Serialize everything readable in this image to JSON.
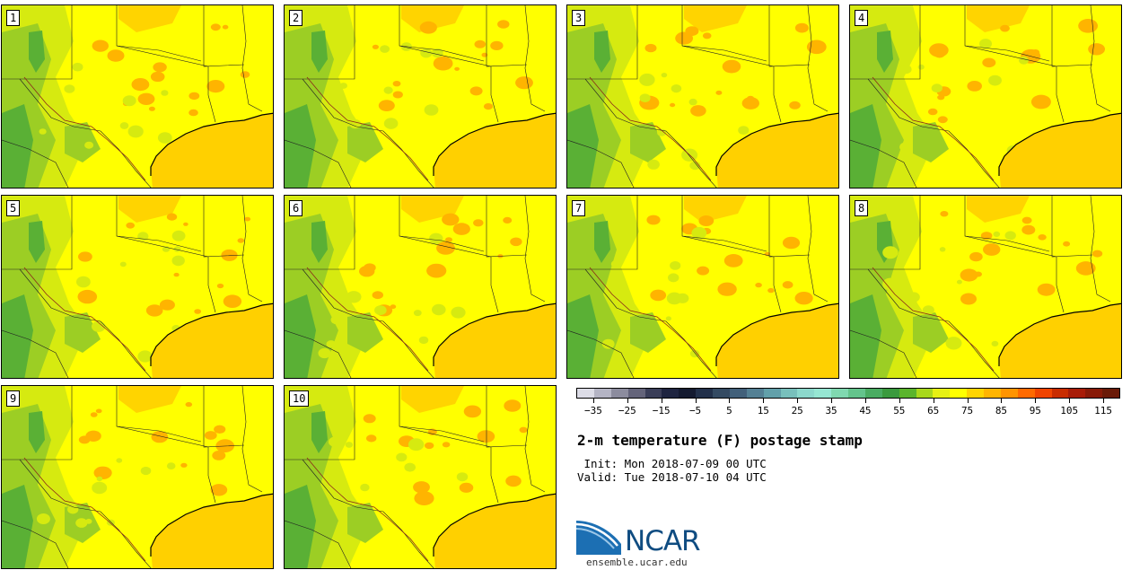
{
  "title": "2-m temperature (F) postage stamp",
  "init": " Init: Mon 2018-07-09 00 UTC",
  "valid": "Valid: Tue 2018-07-10 04 UTC",
  "members": [
    "1",
    "2",
    "3",
    "4",
    "5",
    "6",
    "7",
    "8",
    "9",
    "10"
  ],
  "colorbar": {
    "colors": [
      "#dcdce6",
      "#b4b4c4",
      "#8c8c9e",
      "#64647a",
      "#3a3e58",
      "#1e2440",
      "#141a30",
      "#22304a",
      "#344a62",
      "#42607a",
      "#548094",
      "#62a0aa",
      "#78c0bc",
      "#8cd8cc",
      "#96e6d2",
      "#80d8b0",
      "#64c48c",
      "#4aac62",
      "#3a9a3e",
      "#5ab42c",
      "#a8d81c",
      "#e6f014",
      "#ffff00",
      "#ffd400",
      "#ffb400",
      "#ff9400",
      "#ff6a00",
      "#f04400",
      "#c82c00",
      "#a81c08",
      "#881a08",
      "#6a1a08"
    ],
    "tick_labels": [
      "−35",
      "−25",
      "−15",
      "−5",
      "5",
      "15",
      "25",
      "35",
      "45",
      "55",
      "65",
      "75",
      "85",
      "95",
      "105",
      "115"
    ]
  },
  "colors": {
    "land_hot": "#ffff00",
    "land_mid": "#d6ea10",
    "land_cool": "#9cce24",
    "land_cold": "#5ab035",
    "land_warm": "#ffd400",
    "gulf": "#ffd000",
    "hotspot": "#ffb400",
    "ncar_blue": "#0f4c81"
  },
  "logo_text": "NCAR",
  "site": "ensemble.ucar.edu"
}
